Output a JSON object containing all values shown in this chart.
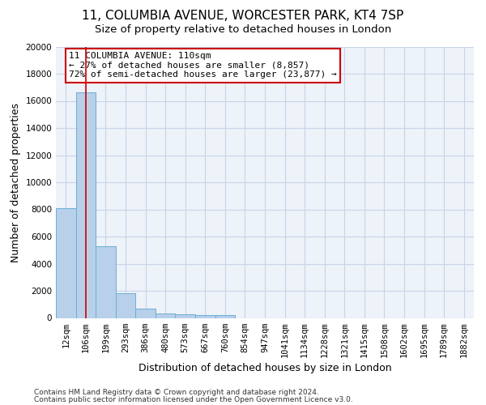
{
  "title_line1": "11, COLUMBIA AVENUE, WORCESTER PARK, KT4 7SP",
  "title_line2": "Size of property relative to detached houses in London",
  "xlabel": "Distribution of detached houses by size in London",
  "ylabel": "Number of detached properties",
  "categories": [
    "12sqm",
    "106sqm",
    "199sqm",
    "293sqm",
    "386sqm",
    "480sqm",
    "573sqm",
    "667sqm",
    "760sqm",
    "854sqm",
    "947sqm",
    "1041sqm",
    "1134sqm",
    "1228sqm",
    "1321sqm",
    "1415sqm",
    "1508sqm",
    "1602sqm",
    "1695sqm",
    "1789sqm",
    "1882sqm"
  ],
  "bar_heights": [
    8100,
    16600,
    5300,
    1850,
    700,
    350,
    280,
    190,
    200,
    0,
    0,
    0,
    0,
    0,
    0,
    0,
    0,
    0,
    0,
    0,
    0
  ],
  "bar_color": "#b8d0ea",
  "bar_edge_color": "#6baed6",
  "grid_color": "#c8d4e8",
  "background_color": "#eef2f9",
  "vline_color": "#cc0000",
  "annotation_text": "11 COLUMBIA AVENUE: 110sqm\n← 27% of detached houses are smaller (8,857)\n72% of semi-detached houses are larger (23,877) →",
  "annotation_box_color": "#ffffff",
  "annotation_box_edge": "#cc0000",
  "ylim": [
    0,
    20000
  ],
  "yticks": [
    0,
    2000,
    4000,
    6000,
    8000,
    10000,
    12000,
    14000,
    16000,
    18000,
    20000
  ],
  "footer_line1": "Contains HM Land Registry data © Crown copyright and database right 2024.",
  "footer_line2": "Contains public sector information licensed under the Open Government Licence v3.0.",
  "title_fontsize": 11,
  "subtitle_fontsize": 9.5,
  "axis_label_fontsize": 9,
  "tick_fontsize": 7.5,
  "annotation_fontsize": 8
}
